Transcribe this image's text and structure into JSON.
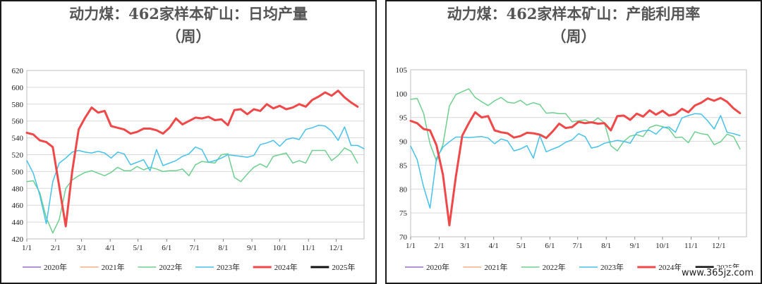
{
  "watermark": "www.365jz.com",
  "chart_data": [
    {
      "type": "line",
      "title": "动力煤：462家样本矿山：日均产量",
      "subtitle": "（周）",
      "xlabel": "",
      "ylabel": "",
      "ylim": [
        420,
        620
      ],
      "yticks": [
        420,
        440,
        460,
        480,
        500,
        520,
        540,
        560,
        580,
        600,
        620
      ],
      "xticks": [
        "1/1",
        "2/1",
        "3/1",
        "4/1",
        "5/1",
        "6/1",
        "7/1",
        "8/1",
        "9/1",
        "10/1",
        "11/1",
        "12/1"
      ],
      "xlim": [
        1,
        53
      ],
      "grid": true,
      "legend": "bottom",
      "series": [
        {
          "name": "2020年",
          "color": "#9b6fc7",
          "width": 1.5,
          "values": []
        },
        {
          "name": "2021年",
          "color": "#f4b183",
          "width": 1.5,
          "values": []
        },
        {
          "name": "2022年",
          "color": "#6fcf8f",
          "width": 1.5,
          "values": [
            488,
            489,
            475,
            445,
            427,
            443,
            480,
            490,
            495,
            499,
            501,
            498,
            495,
            499,
            505,
            501,
            501,
            506,
            502,
            505,
            503,
            500,
            501,
            501,
            503,
            495,
            508,
            512,
            511,
            510,
            520,
            521,
            493,
            488,
            497,
            505,
            509,
            505,
            518,
            520,
            522,
            510,
            513,
            510,
            525,
            525,
            525,
            513,
            519,
            528,
            524,
            510
          ]
        },
        {
          "name": "2023年",
          "color": "#45c1ea",
          "width": 1.5,
          "values": [
            513,
            498,
            472,
            438,
            488,
            510,
            516,
            523,
            525,
            523,
            522,
            524,
            522,
            516,
            523,
            521,
            508,
            511,
            514,
            501,
            526,
            507,
            510,
            513,
            518,
            521,
            529,
            526,
            511,
            513,
            516,
            520,
            519,
            518,
            517,
            519,
            532,
            534,
            537,
            530,
            538,
            540,
            538,
            550,
            552,
            555,
            554,
            548,
            537,
            553,
            531,
            531,
            527
          ]
        },
        {
          "name": "2024年",
          "color": "#f04848",
          "width": 3,
          "values": [
            546,
            544,
            537,
            535,
            529,
            482,
            435,
            500,
            550,
            564,
            576,
            570,
            572,
            554,
            552,
            550,
            545,
            547,
            551,
            551,
            549,
            545,
            552,
            563,
            556,
            560,
            564,
            563,
            565,
            561,
            562,
            555,
            573,
            574,
            568,
            574,
            572,
            580,
            575,
            578,
            574,
            576,
            580,
            577,
            585,
            589,
            594,
            590,
            596,
            588,
            582,
            577
          ]
        },
        {
          "name": "2025年",
          "color": "#111111",
          "width": 3,
          "values": []
        }
      ]
    },
    {
      "type": "line",
      "title": "动力煤：462家样本矿山：产能利用率",
      "subtitle": "（周）",
      "xlabel": "",
      "ylabel": "",
      "ylim": [
        70,
        105
      ],
      "yticks": [
        70,
        75,
        80,
        85,
        90,
        95,
        100,
        105
      ],
      "xticks": [
        "1/1",
        "2/1",
        "3/1",
        "4/1",
        "5/1",
        "6/1",
        "7/1",
        "8/1",
        "9/1",
        "10/1",
        "11/1",
        "12/1"
      ],
      "xlim": [
        1,
        53
      ],
      "grid": true,
      "legend": "bottom",
      "series": [
        {
          "name": "2020年",
          "color": "#9b6fc7",
          "width": 1.5,
          "values": []
        },
        {
          "name": "2021年",
          "color": "#f4b183",
          "width": 1.5,
          "values": []
        },
        {
          "name": "2022年",
          "color": "#6fcf8f",
          "width": 1.5,
          "values": [
            98.8,
            99.0,
            95.9,
            89.5,
            85.9,
            89.3,
            97.4,
            99.8,
            100.4,
            101.0,
            99.2,
            98.3,
            97.5,
            98.5,
            99.2,
            98.2,
            98.0,
            98.6,
            97.6,
            98.1,
            97.7,
            95.9,
            96.0,
            95.8,
            95.8,
            94.1,
            94.3,
            94.5,
            93.9,
            94.9,
            93.9,
            89.1,
            88.0,
            90.0,
            91.1,
            91.4,
            91.0,
            92.9,
            93.4,
            93.1,
            92.6,
            90.8,
            90.9,
            89.7,
            92.0,
            91.6,
            91.4,
            89.3,
            89.9,
            91.5,
            91.0,
            88.4
          ]
        },
        {
          "name": "2023年",
          "color": "#45c1ea",
          "width": 1.5,
          "values": [
            89.0,
            86.2,
            80.5,
            76.0,
            86.4,
            88.8,
            89.9,
            90.9,
            90.9,
            90.8,
            90.9,
            91.0,
            90.7,
            89.5,
            90.5,
            90.1,
            88.0,
            88.4,
            89.1,
            86.5,
            91.2,
            87.8,
            88.4,
            88.9,
            89.8,
            90.3,
            91.6,
            91.0,
            88.6,
            88.9,
            89.6,
            89.9,
            90.2,
            90.0,
            89.6,
            91.8,
            92.2,
            92.3,
            91.5,
            92.9,
            93.0,
            91.9,
            94.9,
            95.4,
            95.8,
            95.7,
            94.3,
            92.6,
            95.4,
            91.9,
            91.6,
            91.2
          ]
        },
        {
          "name": "2024年",
          "color": "#f04848",
          "width": 3,
          "values": [
            94.3,
            93.8,
            92.6,
            92.3,
            89.2,
            83.0,
            72.4,
            82.6,
            91.2,
            93.8,
            96.1,
            95.0,
            95.3,
            92.3,
            91.9,
            91.7,
            90.8,
            91.1,
            91.8,
            91.7,
            91.4,
            90.7,
            92.1,
            93.7,
            92.8,
            93.0,
            94.1,
            93.8,
            94.0,
            93.7,
            93.8,
            92.3,
            95.3,
            95.4,
            94.5,
            95.8,
            95.2,
            96.5,
            95.6,
            96.4,
            95.4,
            95.7,
            96.8,
            96.1,
            97.5,
            98.1,
            99.0,
            98.5,
            99.1,
            98.3,
            96.9,
            95.9
          ]
        },
        {
          "name": "2025年",
          "color": "#111111",
          "width": 3,
          "values": []
        }
      ]
    }
  ]
}
